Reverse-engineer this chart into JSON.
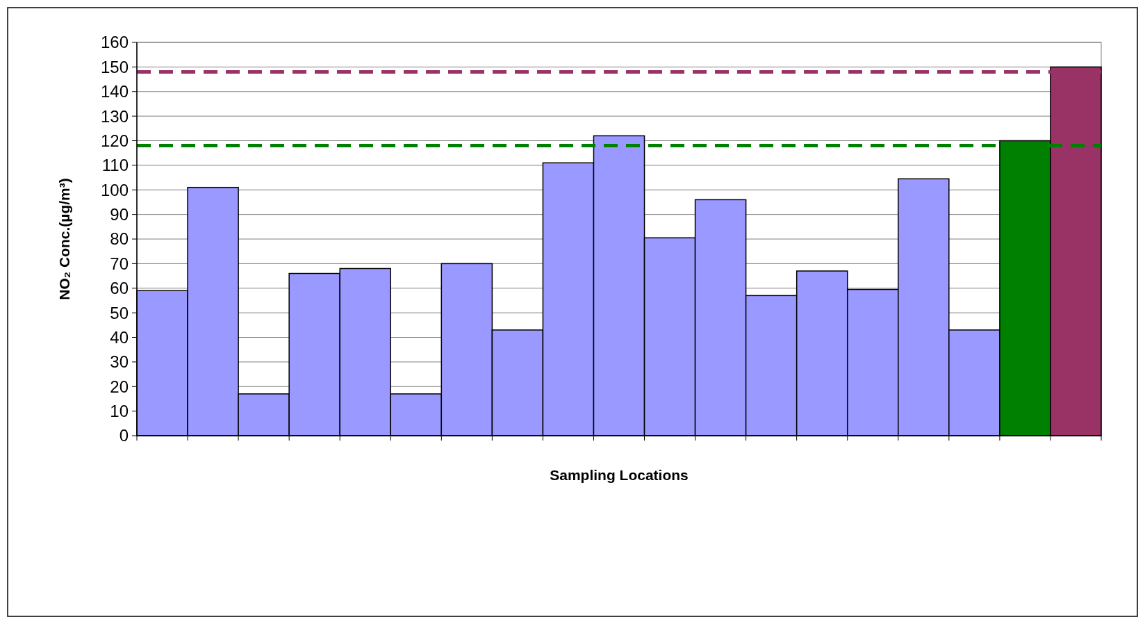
{
  "chart_data": {
    "type": "bar",
    "xlabel": "Sampling Locations",
    "ylabel": "NO₂ Conc.(µg/m³)",
    "categories": [
      null,
      null,
      null,
      null,
      null,
      null,
      null,
      null,
      null,
      null,
      null,
      null,
      null,
      null,
      null,
      null,
      null,
      null,
      null
    ],
    "values": [
      59,
      101,
      17,
      66,
      68,
      17,
      70,
      43,
      111,
      122,
      80.5,
      96,
      57,
      67,
      59.5,
      104.5,
      43,
      120,
      150
    ],
    "colors": [
      "#9999ff",
      "#9999ff",
      "#9999ff",
      "#9999ff",
      "#9999ff",
      "#9999ff",
      "#9999ff",
      "#9999ff",
      "#9999ff",
      "#9999ff",
      "#9999ff",
      "#9999ff",
      "#9999ff",
      "#9999ff",
      "#9999ff",
      "#9999ff",
      "#9999ff",
      "#008000",
      "#993366"
    ],
    "ylim": [
      0,
      160
    ],
    "yticks": [
      0,
      10,
      20,
      30,
      40,
      50,
      60,
      70,
      80,
      90,
      100,
      110,
      120,
      130,
      140,
      150,
      160
    ],
    "grid": "y",
    "ref_lines": [
      {
        "axis": "y",
        "value": 148,
        "color": "#993366",
        "line_style": "dashed"
      },
      {
        "axis": "y",
        "value": 118,
        "color": "#008000",
        "line_style": "dashed"
      }
    ]
  }
}
